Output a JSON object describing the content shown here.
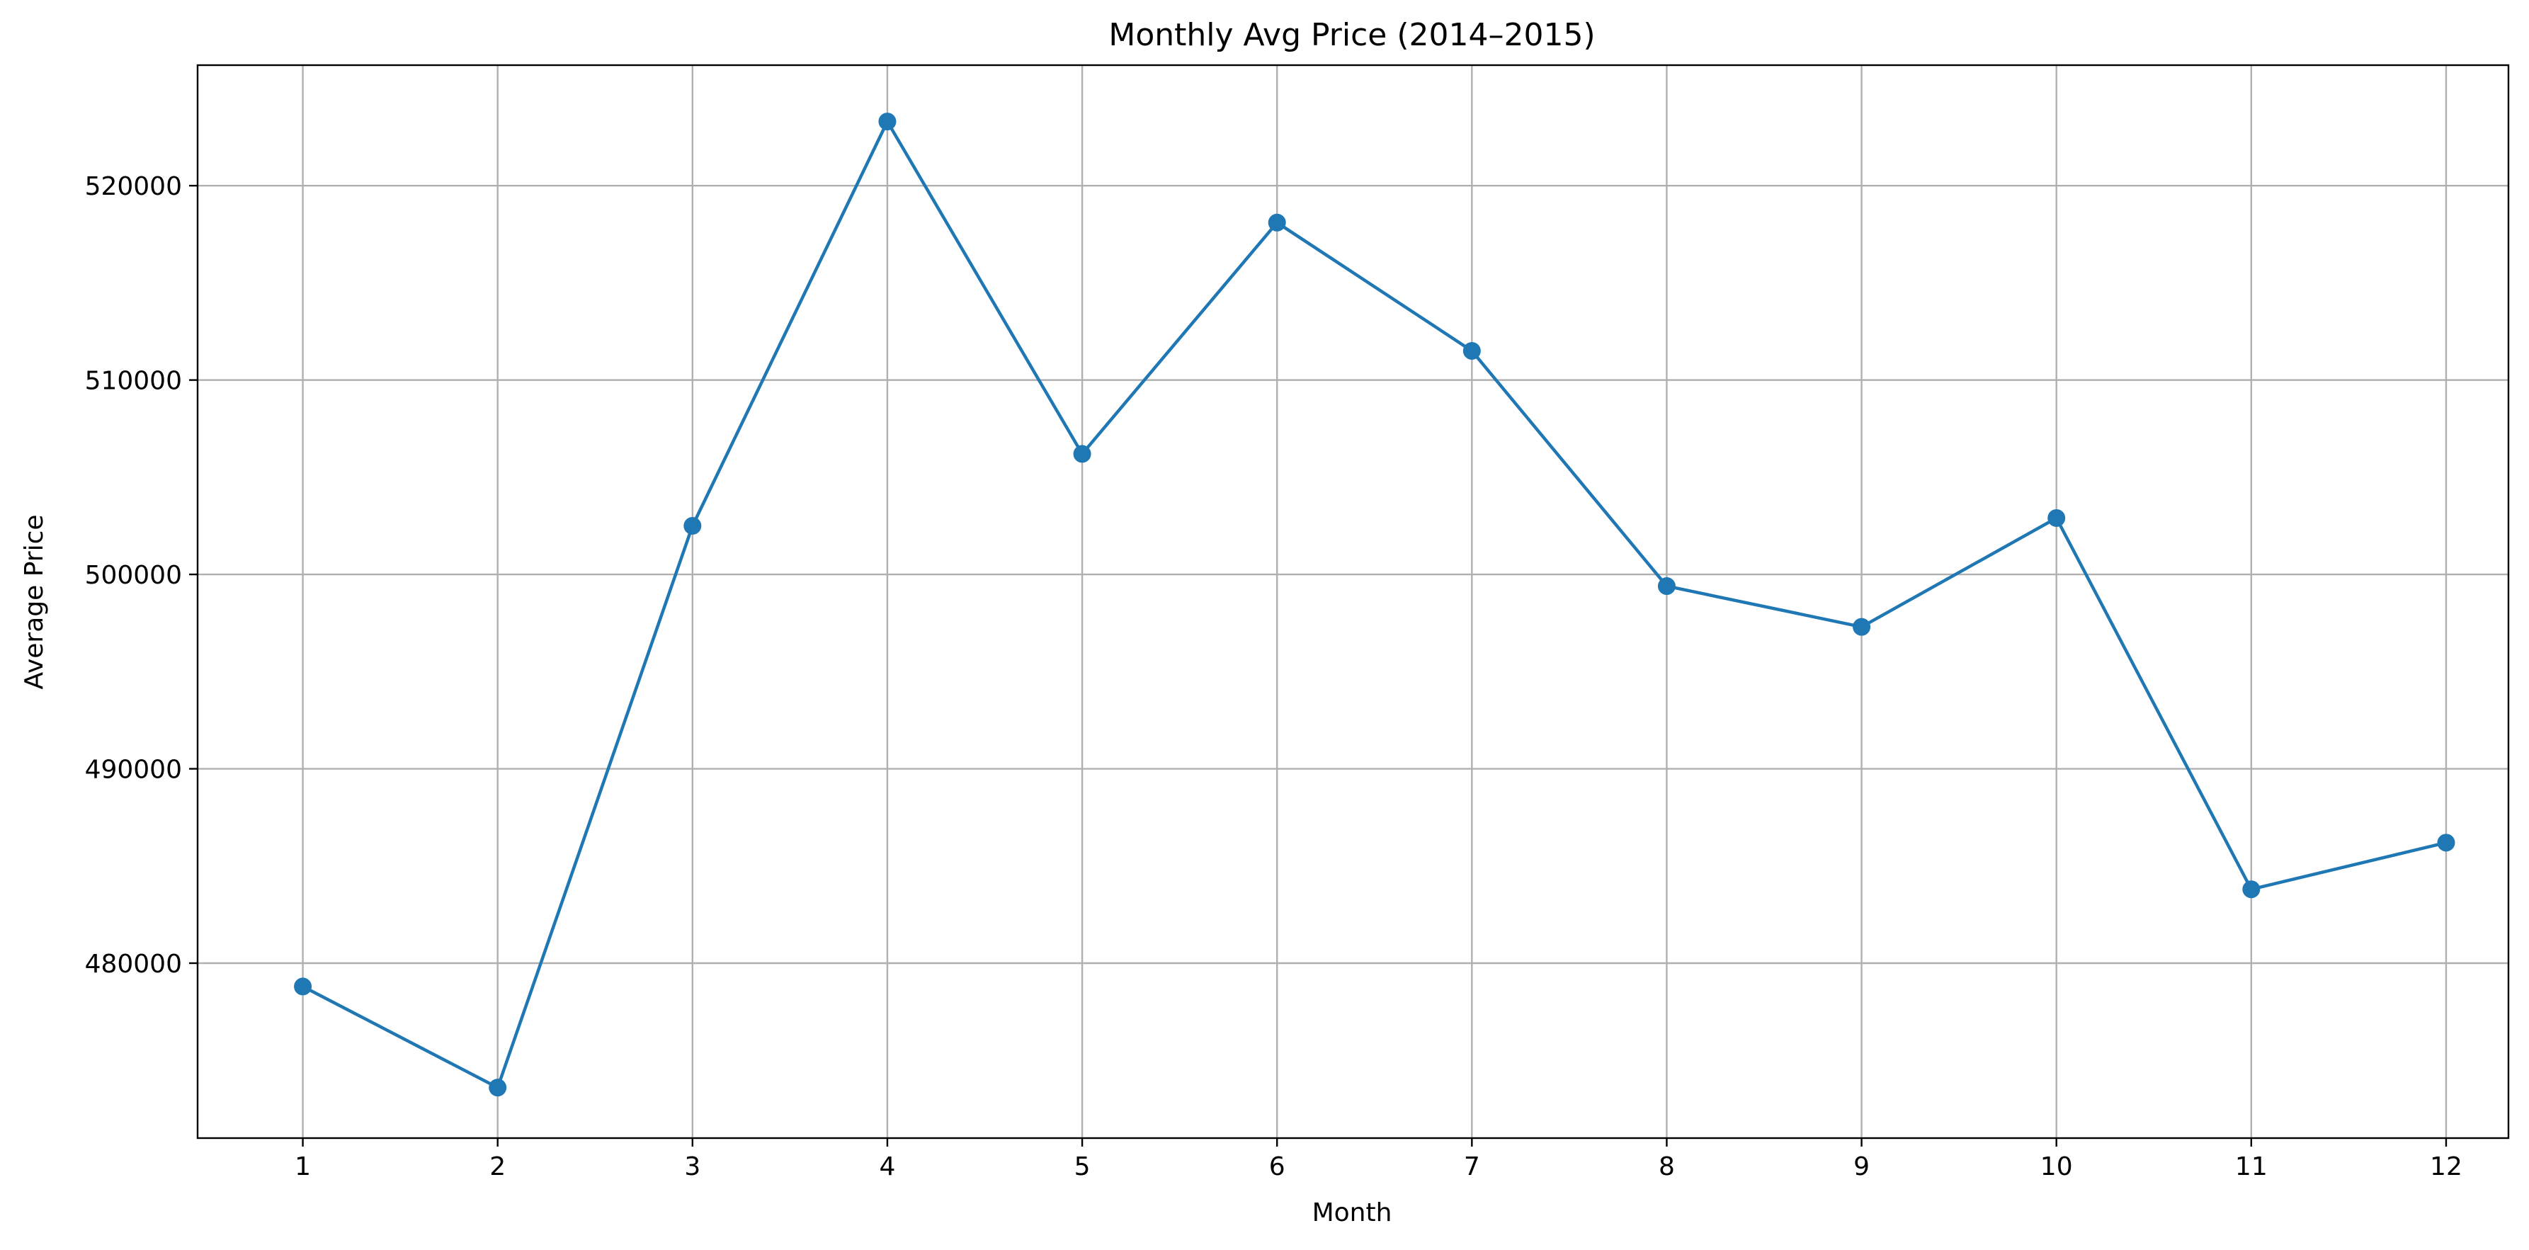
{
  "chart_data": {
    "type": "line",
    "title": "Monthly Avg Price (2014–2015)",
    "xlabel": "Month",
    "ylabel": "Average Price",
    "x": [
      1,
      2,
      3,
      4,
      5,
      6,
      7,
      8,
      9,
      10,
      11,
      12
    ],
    "series": [
      {
        "values": [
          478800,
          473600,
          502500,
          523300,
          506200,
          518100,
          511500,
          499400,
          497300,
          502900,
          483800,
          486200
        ],
        "color": "#1f77b4",
        "marker": "circle"
      }
    ],
    "xticks": [
      1,
      2,
      3,
      4,
      5,
      6,
      7,
      8,
      9,
      10,
      11,
      12
    ],
    "yticks": [
      480000,
      490000,
      500000,
      510000,
      520000
    ],
    "xlim": [
      0.46,
      12.32
    ],
    "ylim": [
      471000,
      526200
    ],
    "grid": true,
    "legend": "none"
  }
}
